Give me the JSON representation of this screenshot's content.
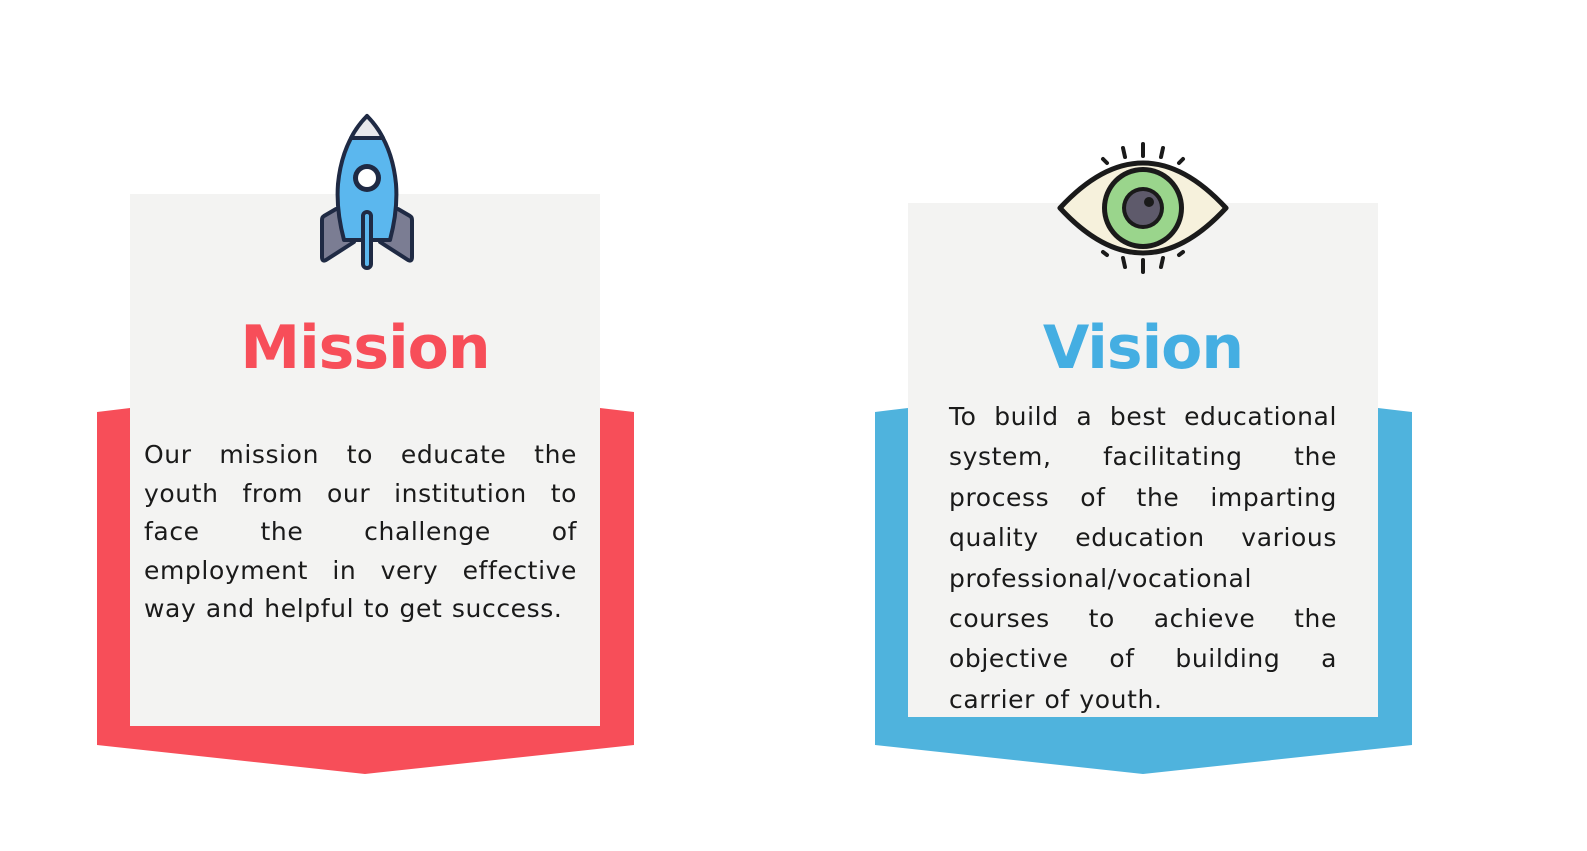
{
  "mission": {
    "title": "Mission",
    "text": "Our mission to educate the youth from our institution to face the challenge of employment in very effective way and helpful to get success.",
    "icon": "rocket-icon",
    "accent_color": "#f74e59",
    "panel_color": "#f3f3f2"
  },
  "vision": {
    "title": "Vision",
    "text": "To build a best educational system, facilitating the process of the imparting quality education various professional/vocational courses to achieve the objective of building a carrier of youth.",
    "icon": "eye-icon",
    "accent_color": "#4fb3dd",
    "title_color": "#44aee2",
    "panel_color": "#f3f3f2"
  }
}
